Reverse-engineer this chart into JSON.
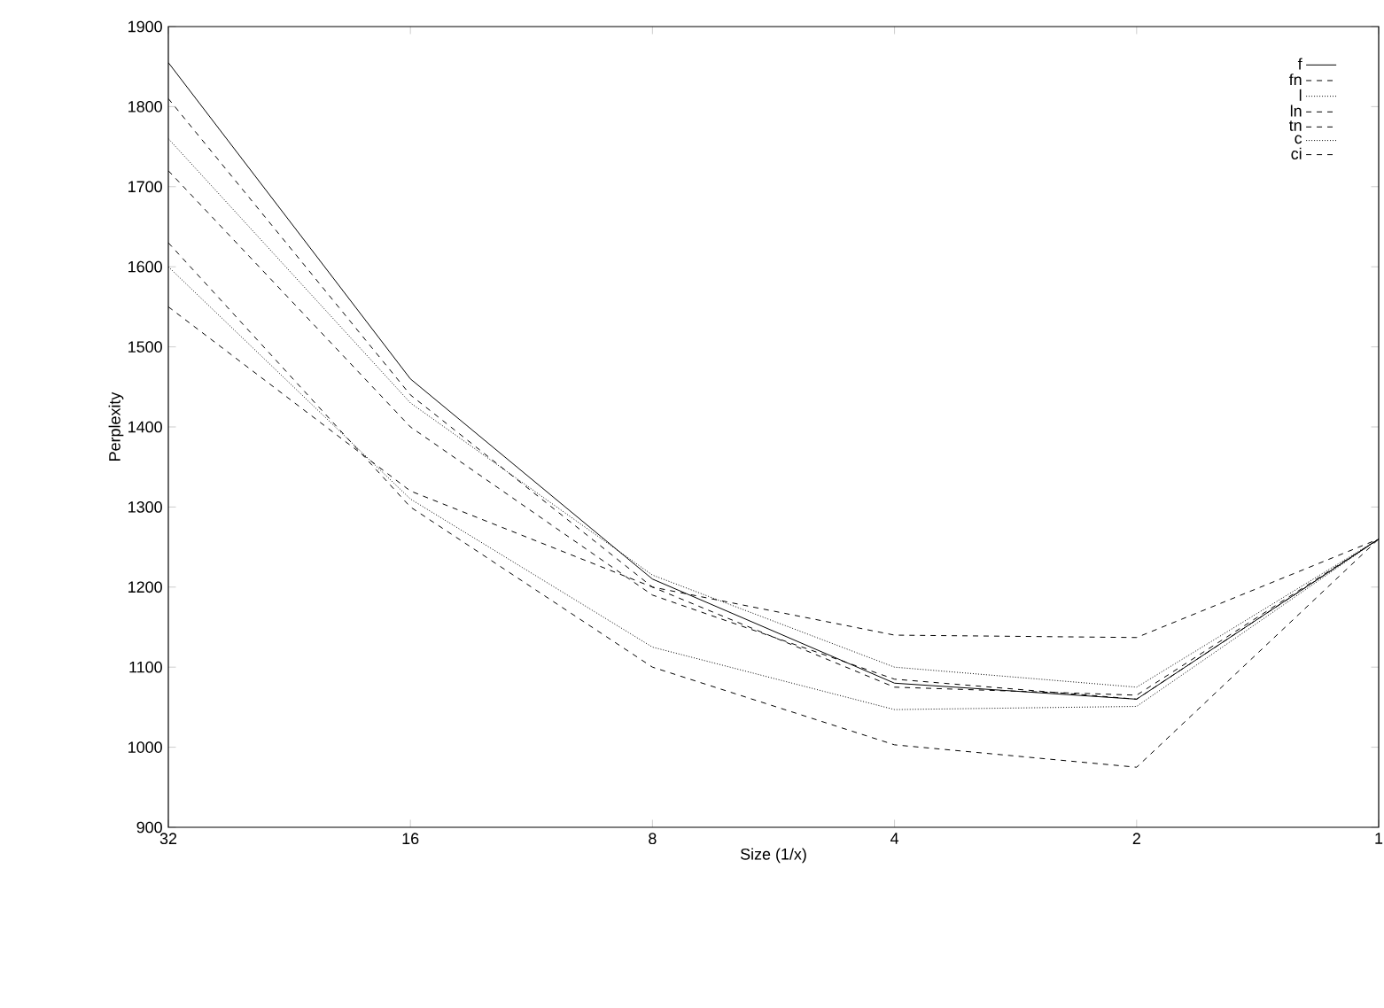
{
  "chart_data": {
    "type": "line",
    "xlabel": "Size (1/x)",
    "ylabel": "Perplexity",
    "log": "x",
    "x": [
      32,
      16,
      8,
      4,
      2,
      1
    ],
    "xlim": [
      32,
      1
    ],
    "xticks": [
      32,
      16,
      8,
      4,
      2,
      1
    ],
    "ylim": [
      900,
      1900
    ],
    "yticks": [
      900,
      1000,
      1100,
      1200,
      1300,
      1400,
      1500,
      1600,
      1700,
      1800,
      1900
    ],
    "grid": false,
    "legend": "top right",
    "marker": "none",
    "series": [
      {
        "name": "f",
        "color": "#000000",
        "line_style": "solid",
        "values": [
          1855,
          1460,
          1210,
          1080,
          1060,
          1260
        ]
      },
      {
        "name": "fn",
        "color": "#000000",
        "line_style": "dashed",
        "values": [
          1810,
          1440,
          1200,
          1075,
          1065,
          1260
        ]
      },
      {
        "name": "l",
        "color": "#000000",
        "line_style": "dotted",
        "values": [
          1760,
          1430,
          1215,
          1100,
          1075,
          1260
        ]
      },
      {
        "name": "ln",
        "color": "#000000",
        "line_style": "dashed",
        "values": [
          1720,
          1400,
          1190,
          1085,
          1060,
          1260
        ]
      },
      {
        "name": "tn",
        "color": "#000000",
        "line_style": "dashed",
        "values": [
          1550,
          1320,
          1200,
          1140,
          1137,
          1260
        ]
      },
      {
        "name": "c",
        "color": "#000000",
        "line_style": "dotted",
        "values": [
          1600,
          1310,
          1125,
          1047,
          1051,
          1260
        ]
      },
      {
        "name": "ci",
        "color": "#000000",
        "line_style": "dashed",
        "values": [
          1630,
          1300,
          1100,
          1003,
          975,
          1260
        ]
      }
    ]
  }
}
